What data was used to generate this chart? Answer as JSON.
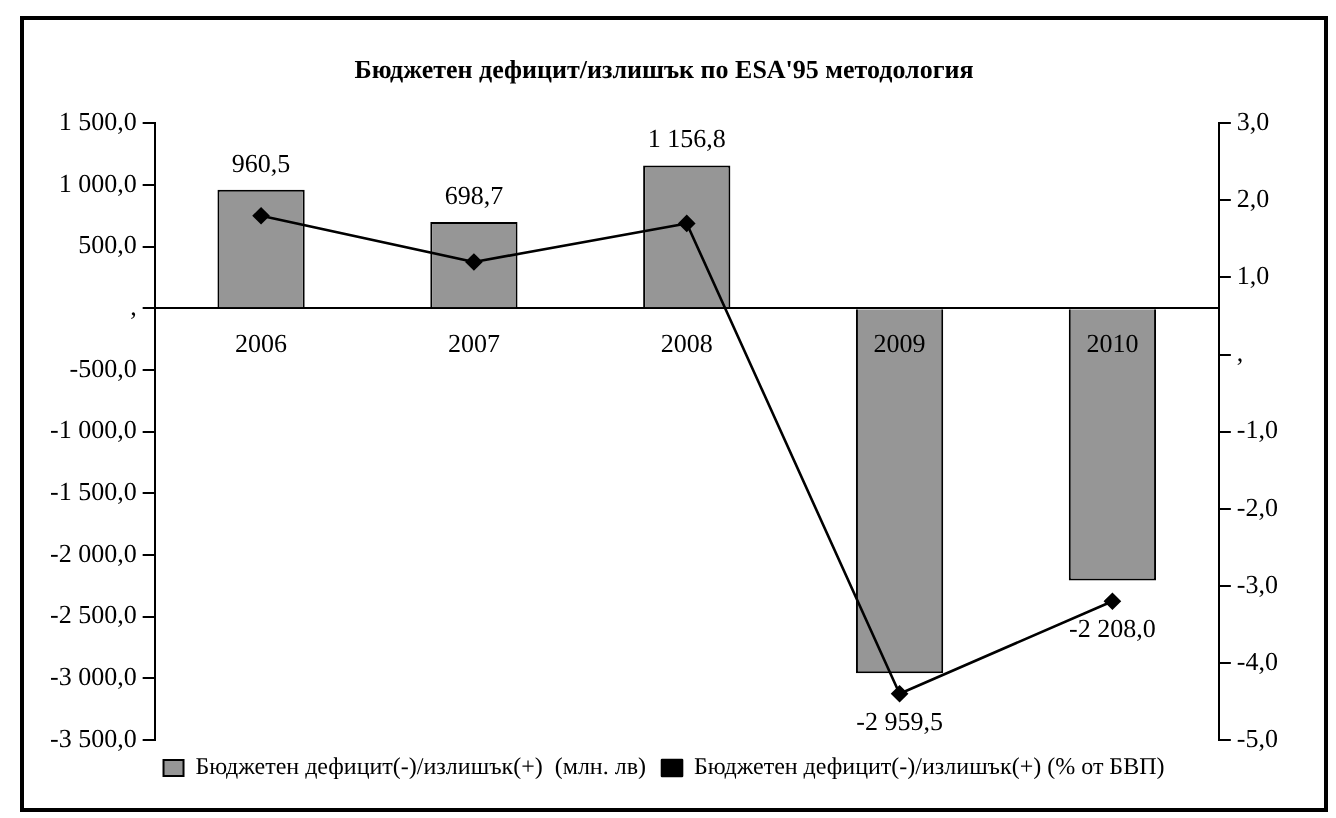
{
  "chart_data": {
    "type": "bar",
    "title": "Бюджетен дефицит/излишък по ESA'95 методология",
    "categories": [
      "2006",
      "2007",
      "2008",
      "2009",
      "2010"
    ],
    "series": [
      {
        "name": "Бюджетен дефицит(-)/излишък(+)  (млн. лв)",
        "color": "#969696",
        "values": [
          960.5,
          698.7,
          1156.8,
          -2959.5,
          -2208.0
        ],
        "value_labels": [
          "960,5",
          "698,7",
          "1 156,8",
          "-2 959,5",
          "-2 208,0"
        ]
      },
      {
        "name": "Бюджетен дефицит(-)/излишък(+) (% от БВП)",
        "type": "line",
        "axis": "y2",
        "color": "#000000",
        "values": [
          1.8,
          1.2,
          1.7,
          -4.4,
          -3.2
        ]
      }
    ],
    "ylim": [
      -3500,
      1500
    ],
    "yticks": [
      {
        "value": 1500,
        "label": "1 500,0"
      },
      {
        "value": 1000,
        "label": "1 000,0"
      },
      {
        "value": 500,
        "label": "500,0"
      },
      {
        "value": 0,
        "label": ","
      },
      {
        "value": -500,
        "label": "-500,0"
      },
      {
        "value": -1000,
        "label": "-1 000,0"
      },
      {
        "value": -1500,
        "label": "-1 500,0"
      },
      {
        "value": -2000,
        "label": "-2 000,0"
      },
      {
        "value": -2500,
        "label": "-2 500,0"
      },
      {
        "value": -3000,
        "label": "-3 000,0"
      },
      {
        "value": -3500,
        "label": "-3 500,0"
      }
    ],
    "y2lim": [
      -5,
      3
    ],
    "y2ticks": [
      {
        "value": 3,
        "label": "3,0"
      },
      {
        "value": 2,
        "label": "2,0"
      },
      {
        "value": 1,
        "label": "1,0"
      },
      {
        "value": 0,
        "label": ","
      },
      {
        "value": -1,
        "label": "-1,0"
      },
      {
        "value": -2,
        "label": "-2,0"
      },
      {
        "value": -3,
        "label": "-3,0"
      },
      {
        "value": -4,
        "label": "-4,0"
      },
      {
        "value": -5,
        "label": "-5,0"
      }
    ],
    "marker": "diamond",
    "legend": "bottom",
    "grid": false
  }
}
